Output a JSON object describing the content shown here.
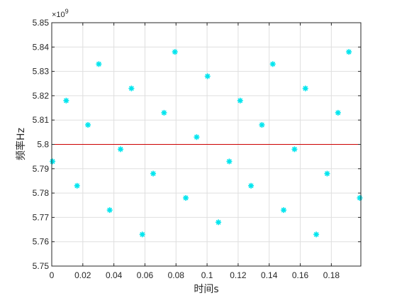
{
  "chart_data": {
    "type": "scatter",
    "title": "",
    "xlabel": "时间s",
    "ylabel": "频率Hz",
    "y_multiplier_base": "×10",
    "y_multiplier_exp": "9",
    "xlim": [
      0,
      0.199
    ],
    "ylim": [
      5.75,
      5.85
    ],
    "grid": true,
    "x_ticks": [
      0,
      0.02,
      0.04,
      0.06,
      0.08,
      0.1,
      0.12,
      0.14,
      0.16,
      0.18
    ],
    "x_tick_labels": [
      "0",
      "0.02",
      "0.04",
      "0.06",
      "0.08",
      "0.1",
      "0.12",
      "0.14",
      "0.16",
      "0.18"
    ],
    "y_ticks": [
      5.75,
      5.76,
      5.77,
      5.78,
      5.79,
      5.8,
      5.81,
      5.82,
      5.83,
      5.84,
      5.85
    ],
    "y_tick_labels": [
      "5.75",
      "5.76",
      "5.77",
      "5.78",
      "5.79",
      "5.8",
      "5.81",
      "5.82",
      "5.83",
      "5.84",
      "5.85"
    ],
    "reference_line": {
      "y": 5.8,
      "color": "#cc0000"
    },
    "series": [
      {
        "color": "#00e5ee",
        "marker": "asterisk",
        "x": [
          0.0005,
          0.0093,
          0.0163,
          0.0233,
          0.0303,
          0.0373,
          0.0443,
          0.0513,
          0.0583,
          0.0653,
          0.0723,
          0.0793,
          0.0863,
          0.0933,
          0.1003,
          0.1073,
          0.1143,
          0.1213,
          0.1283,
          0.1353,
          0.1423,
          0.1493,
          0.1563,
          0.1633,
          0.1703,
          0.1773,
          0.1843,
          0.1913,
          0.1983
        ],
        "y": [
          5.793,
          5.818,
          5.783,
          5.808,
          5.833,
          5.773,
          5.798,
          5.823,
          5.763,
          5.788,
          5.813,
          5.838,
          5.778,
          5.803,
          5.828,
          5.768,
          5.793,
          5.818,
          5.783,
          5.808,
          5.833,
          5.773,
          5.798,
          5.823,
          5.763,
          5.788,
          5.813,
          5.838,
          5.778
        ]
      }
    ]
  }
}
